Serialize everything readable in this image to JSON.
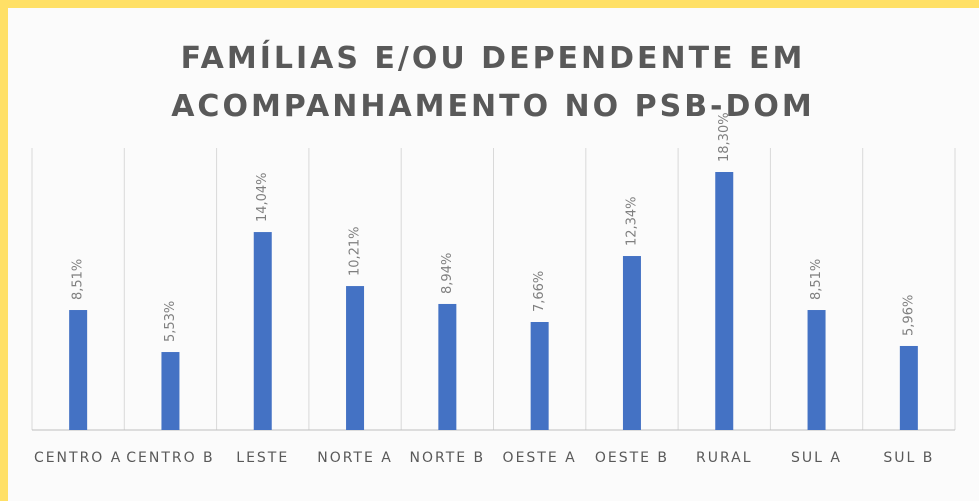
{
  "chart_data": {
    "type": "bar",
    "title": [
      "FAMÍLIAS E/OU DEPENDENTE EM",
      "ACOMPANHAMENTO NO PSB-DOM"
    ],
    "categories": [
      "CENTRO A",
      "CENTRO B",
      "LESTE",
      "NORTE A",
      "NORTE B",
      "OESTE A",
      "OESTE B",
      "RURAL",
      "SUL A",
      "SUL B"
    ],
    "values": [
      8.51,
      5.53,
      14.04,
      10.21,
      8.94,
      7.66,
      12.34,
      18.3,
      8.51,
      5.96
    ],
    "value_labels": [
      "8,51%",
      "5,53%",
      "14,04%",
      "10,21%",
      "8,94%",
      "7,66%",
      "12,34%",
      "18,30%",
      "8,51%",
      "5,96%"
    ],
    "color": "#4472c4"
  }
}
